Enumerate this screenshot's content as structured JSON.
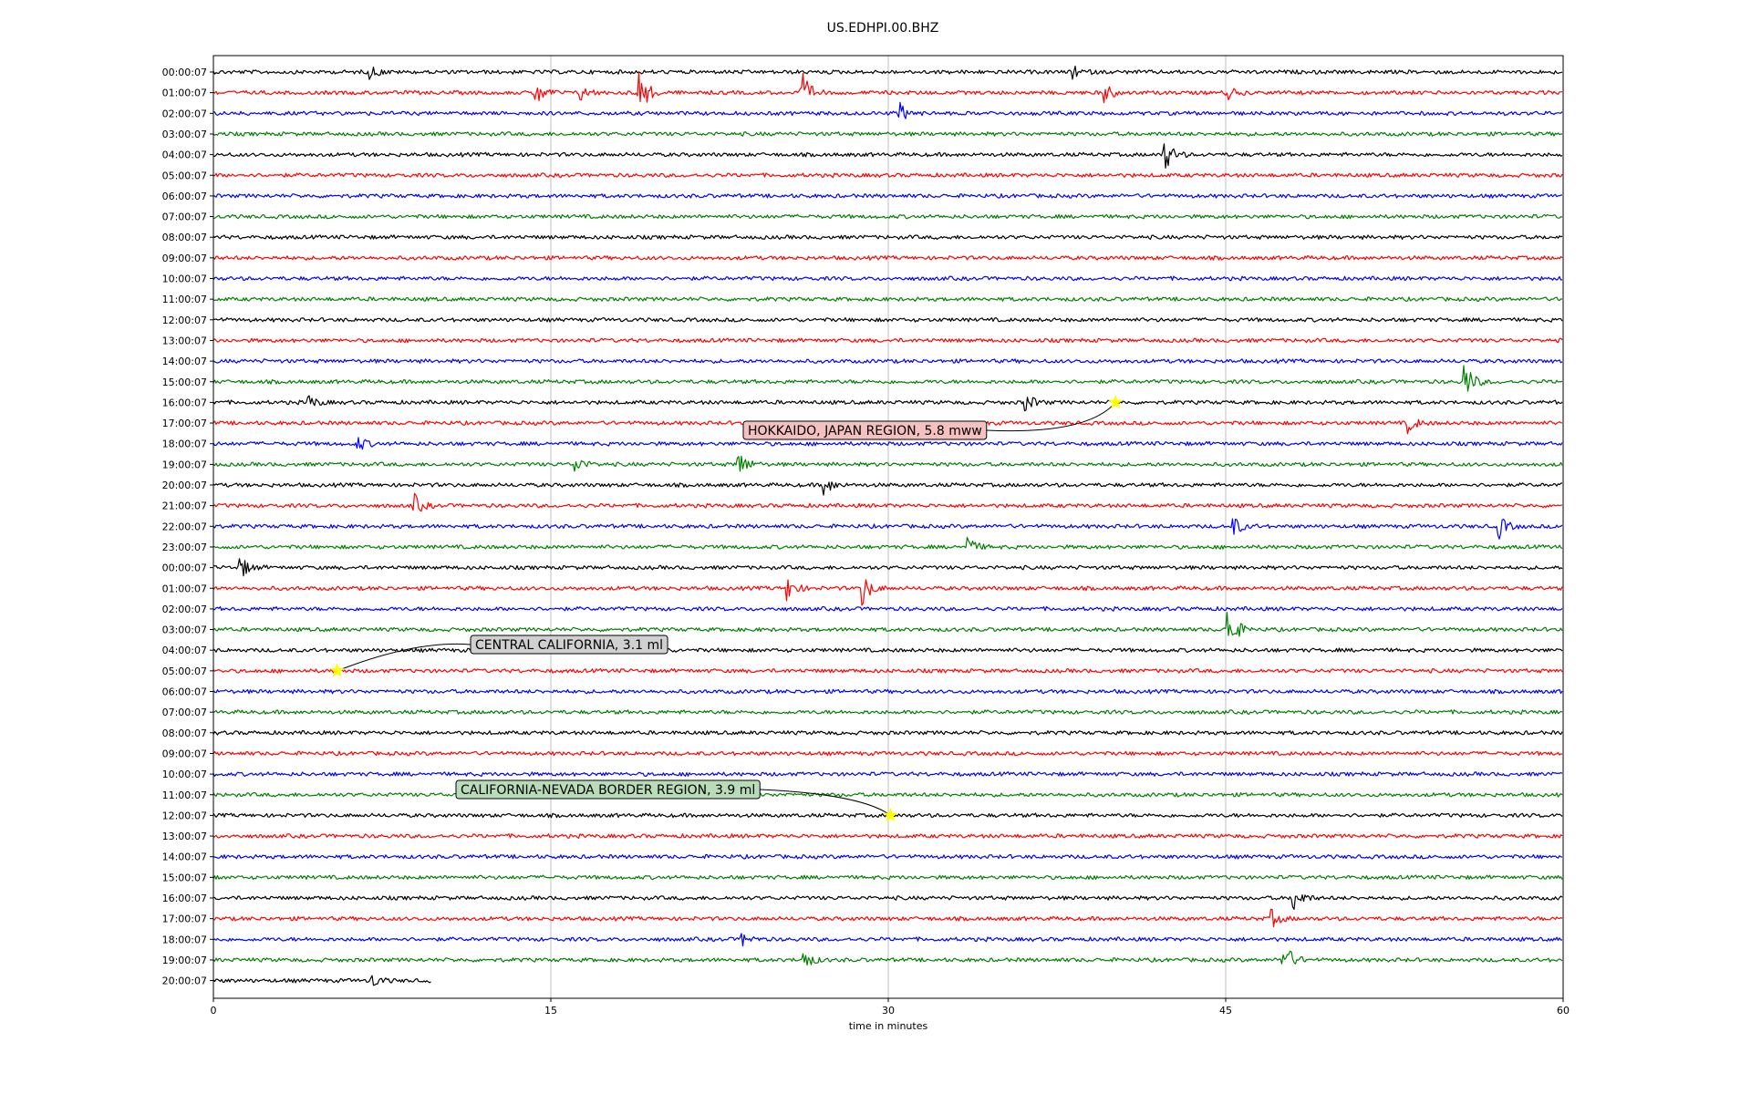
{
  "chart_data": {
    "type": "line",
    "title": "US.EDHPI.00.BHZ",
    "xlabel": "time in minutes",
    "ylabel": "",
    "xlim": [
      0,
      60
    ],
    "xticks": [
      "0",
      "15",
      "30",
      "45",
      "60"
    ],
    "grid": "vertical lines at 15, 30, 45",
    "row_labels": [
      "00:00:07",
      "01:00:07",
      "02:00:07",
      "03:00:07",
      "04:00:07",
      "05:00:07",
      "06:00:07",
      "07:00:07",
      "08:00:07",
      "09:00:07",
      "10:00:07",
      "11:00:07",
      "12:00:07",
      "13:00:07",
      "14:00:07",
      "15:00:07",
      "16:00:07",
      "17:00:07",
      "18:00:07",
      "19:00:07",
      "20:00:07",
      "21:00:07",
      "22:00:07",
      "23:00:07",
      "00:00:07",
      "01:00:07",
      "02:00:07",
      "03:00:07",
      "04:00:07",
      "05:00:07",
      "06:00:07",
      "07:00:07",
      "08:00:07",
      "09:00:07",
      "10:00:07",
      "11:00:07",
      "12:00:07",
      "13:00:07",
      "14:00:07",
      "15:00:07",
      "16:00:07",
      "17:00:07",
      "18:00:07",
      "19:00:07",
      "20:00:07"
    ],
    "row_colors": [
      "#000000",
      "#ff0000",
      "#0000ff",
      "#008000"
    ],
    "last_row_end_minute": 9.7,
    "events": [
      {
        "row": 0,
        "minute": 6.9,
        "amp": 0.5
      },
      {
        "row": 0,
        "minute": 38.2,
        "amp": 0.4
      },
      {
        "row": 1,
        "minute": 14.3,
        "amp": 0.9
      },
      {
        "row": 1,
        "minute": 16.3,
        "amp": 0.5
      },
      {
        "row": 1,
        "minute": 18.9,
        "amp": 1.7
      },
      {
        "row": 1,
        "minute": 26.1,
        "amp": 1.5
      },
      {
        "row": 1,
        "minute": 39.6,
        "amp": 0.6
      },
      {
        "row": 1,
        "minute": 45.0,
        "amp": 0.5
      },
      {
        "row": 2,
        "minute": 30.5,
        "amp": 0.6
      },
      {
        "row": 4,
        "minute": 42.2,
        "amp": 1.3
      },
      {
        "row": 15,
        "minute": 55.6,
        "amp": 1.3
      },
      {
        "row": 16,
        "minute": 4.2,
        "amp": 0.5
      },
      {
        "row": 16,
        "minute": 36.1,
        "amp": 0.6
      },
      {
        "row": 17,
        "minute": 53.1,
        "amp": 0.6
      },
      {
        "row": 18,
        "minute": 6.4,
        "amp": 0.5
      },
      {
        "row": 19,
        "minute": 16.1,
        "amp": 0.5
      },
      {
        "row": 19,
        "minute": 23.3,
        "amp": 1.0
      },
      {
        "row": 20,
        "minute": 27.1,
        "amp": 0.7
      },
      {
        "row": 21,
        "minute": 8.9,
        "amp": 0.7
      },
      {
        "row": 22,
        "minute": 45.3,
        "amp": 0.7
      },
      {
        "row": 22,
        "minute": 57.1,
        "amp": 0.8
      },
      {
        "row": 23,
        "minute": 33.5,
        "amp": 0.7
      },
      {
        "row": 24,
        "minute": 1.2,
        "amp": 0.7
      },
      {
        "row": 25,
        "minute": 28.8,
        "amp": 1.2
      },
      {
        "row": 25,
        "minute": 25.5,
        "amp": 0.8
      },
      {
        "row": 27,
        "minute": 45.1,
        "amp": 1.6
      },
      {
        "row": 40,
        "minute": 48.0,
        "amp": 0.9
      },
      {
        "row": 41,
        "minute": 47.0,
        "amp": 0.6
      },
      {
        "row": 42,
        "minute": 23.5,
        "amp": 0.4
      },
      {
        "row": 43,
        "minute": 26.2,
        "amp": 0.7
      },
      {
        "row": 43,
        "minute": 47.5,
        "amp": 1.5
      },
      {
        "row": 44,
        "minute": 7.0,
        "amp": 0.5
      }
    ],
    "annotations": [
      {
        "text": "HOKKAIDO, JAPAN REGION, 5.8 mww",
        "row": 16,
        "minute": 40.1,
        "bg": "#f4c0c0"
      },
      {
        "text": "CENTRAL CALIFORNIA, 3.1 ml",
        "row": 29,
        "minute": 5.5,
        "bg": "#d0d0d0"
      },
      {
        "text": "CALIFORNIA-NEVADA BORDER REGION, 3.9 ml",
        "row": 36,
        "minute": 30.1,
        "bg": "#b8dcb8"
      }
    ]
  },
  "colors": {
    "marker": "#ffff00",
    "grid": "#b0b0b0"
  }
}
